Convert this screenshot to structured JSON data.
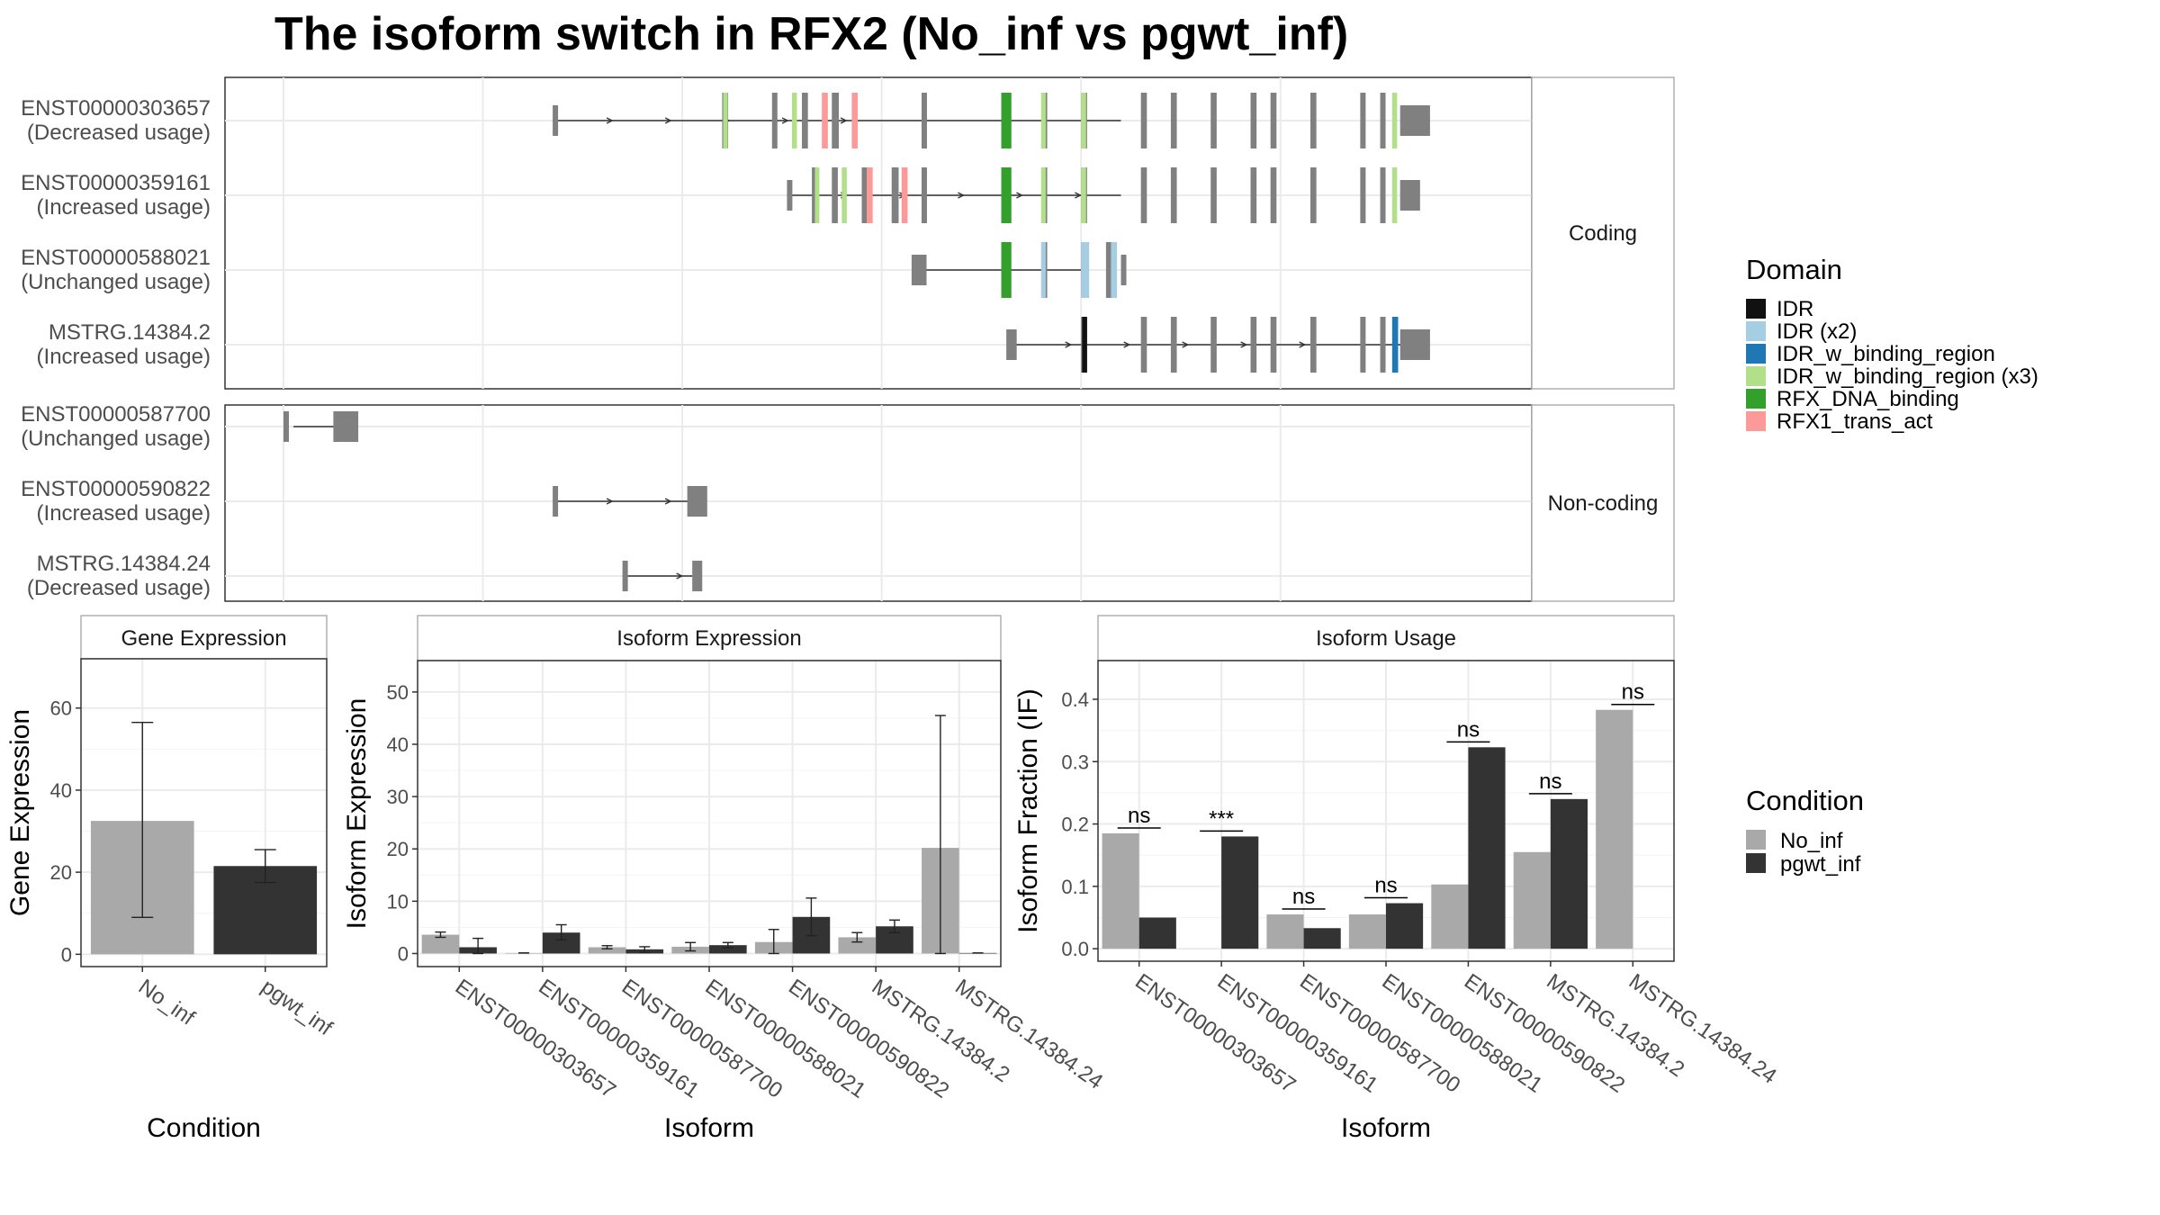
{
  "title": "The isoform switch in RFX2 (No_inf vs pgwt_inf)",
  "colors": {
    "exon": "#808080",
    "bar_no_inf": "#a9a9a9",
    "bar_pgwt_inf": "#333333",
    "IDR": "#111111",
    "IDR (x2)": "#a6cee3",
    "IDR_w_binding_region": "#1f78b4",
    "IDR_w_binding_region (x3)": "#b2df8a",
    "RFX_DNA_binding": "#33a02c",
    "RFX1_trans_act": "#fb9a99"
  },
  "structure": {
    "coding_label": "Coding",
    "noncoding_label": "Non-coding",
    "coding": [
      {
        "name": "ENST00000303657",
        "usage": "(Decreased usage)",
        "line": [
          27,
          84
        ],
        "arrows": true,
        "exons": [
          [
            27,
            27.5,
            "s"
          ],
          [
            44,
            44.6,
            "t"
          ],
          [
            49,
            49.5,
            "t"
          ],
          [
            52,
            52.6,
            "t"
          ],
          [
            55,
            55.7,
            "t"
          ],
          [
            64,
            64.5,
            "t"
          ],
          [
            72,
            73,
            "t"
          ],
          [
            76,
            76.6,
            "t"
          ],
          [
            80,
            80.6,
            "t"
          ],
          [
            86,
            86.6,
            "t"
          ],
          [
            89,
            89.6,
            "t"
          ],
          [
            93,
            93.6,
            "t"
          ],
          [
            97,
            97.6,
            "t"
          ],
          [
            99,
            99.6,
            "t"
          ],
          [
            103,
            103.6,
            "t"
          ],
          [
            108,
            108.5,
            "t"
          ],
          [
            110,
            110.3,
            "t"
          ],
          [
            112,
            115,
            "u"
          ]
        ],
        "domains": [
          [
            44.1,
            44.5,
            "IDR_w_binding_region (x3)"
          ],
          [
            51,
            51.5,
            "IDR_w_binding_region (x3)"
          ],
          [
            54,
            54.6,
            "RFX1_trans_act"
          ],
          [
            57,
            57.6,
            "RFX1_trans_act"
          ],
          [
            72,
            73,
            "RFX_DNA_binding"
          ],
          [
            76,
            76.4,
            "IDR_w_binding_region (x3)"
          ],
          [
            80,
            80.5,
            "IDR_w_binding_region (x3)"
          ],
          [
            111.2,
            111.7,
            "IDR_w_binding_region (x3)"
          ]
        ]
      },
      {
        "name": "ENST00000359161",
        "usage": "(Increased usage)",
        "line": [
          50.5,
          84
        ],
        "arrows": true,
        "exons": [
          [
            50.5,
            51,
            "s"
          ],
          [
            53,
            53.5,
            "t"
          ],
          [
            55,
            55.6,
            "t"
          ],
          [
            58,
            58.6,
            "t"
          ],
          [
            61,
            61.7,
            "t"
          ],
          [
            64,
            64.5,
            "t"
          ],
          [
            72,
            73,
            "t"
          ],
          [
            76,
            76.6,
            "t"
          ],
          [
            80,
            80.6,
            "t"
          ],
          [
            86,
            86.6,
            "t"
          ],
          [
            89,
            89.6,
            "t"
          ],
          [
            93,
            93.6,
            "t"
          ],
          [
            97,
            97.6,
            "t"
          ],
          [
            99,
            99.6,
            "t"
          ],
          [
            103,
            103.6,
            "t"
          ],
          [
            108,
            108.5,
            "t"
          ],
          [
            110,
            110.3,
            "t"
          ],
          [
            112,
            114,
            "u"
          ]
        ],
        "domains": [
          [
            53.3,
            53.5,
            "IDR_w_binding_region (x3)"
          ],
          [
            56,
            56.5,
            "IDR_w_binding_region (x3)"
          ],
          [
            58.5,
            59.1,
            "RFX1_trans_act"
          ],
          [
            62,
            62.6,
            "RFX1_trans_act"
          ],
          [
            72,
            73,
            "RFX_DNA_binding"
          ],
          [
            76,
            76.4,
            "IDR_w_binding_region (x3)"
          ],
          [
            80,
            80.5,
            "IDR_w_binding_region (x3)"
          ],
          [
            111.2,
            111.7,
            "IDR_w_binding_region (x3)"
          ]
        ]
      },
      {
        "name": "ENST00000588021",
        "usage": "(Unchanged usage)",
        "line": [
          64,
          80
        ],
        "arrows": false,
        "exons": [
          [
            63,
            64.5,
            "u"
          ],
          [
            72,
            73,
            "t"
          ],
          [
            76,
            76.6,
            "t"
          ],
          [
            80,
            80.8,
            "t"
          ],
          [
            82.5,
            83.5,
            "t"
          ],
          [
            84,
            84.3,
            "u"
          ]
        ],
        "domains": [
          [
            72,
            73,
            "RFX_DNA_binding"
          ],
          [
            76,
            76.4,
            "IDR (x2)"
          ],
          [
            80,
            80.8,
            "IDR (x2)"
          ],
          [
            83,
            83.6,
            "IDR (x2)"
          ]
        ]
      },
      {
        "name": "MSTRG.14384.2",
        "usage": "(Increased usage)",
        "line": [
          73,
          113
        ],
        "arrows": true,
        "exons": [
          [
            72.5,
            73,
            "s"
          ],
          [
            73,
            73.3,
            "u"
          ],
          [
            80,
            80.6,
            "t"
          ],
          [
            86,
            86.6,
            "t"
          ],
          [
            89,
            89.6,
            "t"
          ],
          [
            93,
            93.6,
            "t"
          ],
          [
            97,
            97.6,
            "t"
          ],
          [
            99,
            99.6,
            "t"
          ],
          [
            103,
            103.6,
            "t"
          ],
          [
            108,
            108.5,
            "t"
          ],
          [
            110,
            110.3,
            "t"
          ],
          [
            112,
            115,
            "u"
          ]
        ],
        "domains": [
          [
            80.1,
            80.6,
            "IDR"
          ],
          [
            111.2,
            111.8,
            "IDR_w_binding_region"
          ]
        ]
      }
    ],
    "noncoding": [
      {
        "name": "ENST00000587700",
        "usage": "(Unchanged usage)",
        "line": [
          1,
          7
        ],
        "arrows": false,
        "exons": [
          [
            0,
            0.5,
            "s"
          ],
          [
            5,
            7.5,
            "u"
          ]
        ],
        "domains": []
      },
      {
        "name": "ENST00000590822",
        "usage": "(Increased usage)",
        "line": [
          27,
          41
        ],
        "arrows": true,
        "exons": [
          [
            27,
            27.5,
            "s"
          ],
          [
            40.5,
            41,
            "s"
          ],
          [
            41,
            42.5,
            "u"
          ]
        ],
        "domains": []
      },
      {
        "name": "MSTRG.14384.24",
        "usage": "(Decreased usage)",
        "line": [
          34,
          41
        ],
        "arrows": true,
        "exons": [
          [
            34,
            34.5,
            "s"
          ],
          [
            41,
            42,
            "u"
          ]
        ],
        "domains": []
      }
    ]
  },
  "legend_domain": {
    "title": "Domain",
    "items": [
      "IDR",
      "IDR (x2)",
      "IDR_w_binding_region",
      "IDR_w_binding_region (x3)",
      "RFX_DNA_binding",
      "RFX1_trans_act"
    ]
  },
  "legend_condition": {
    "title": "Condition",
    "items": [
      "No_inf",
      "pgwt_inf"
    ]
  },
  "chart_data": [
    {
      "type": "bar",
      "title": "Gene Expression",
      "xlabel": "Condition",
      "ylabel": "Gene Expression",
      "ylim": [
        -3,
        72
      ],
      "yticks": [
        0,
        20,
        40,
        60
      ],
      "categories": [
        "No_inf",
        "pgwt_inf"
      ],
      "values": [
        32.5,
        21.5
      ],
      "error": [
        [
          9,
          56.5
        ],
        [
          17.5,
          25.5
        ]
      ]
    },
    {
      "type": "bar",
      "title": "Isoform Expression",
      "xlabel": "Isoform",
      "ylabel": "Isoform Expression",
      "ylim": [
        -2.5,
        56
      ],
      "yticks": [
        0,
        10,
        20,
        30,
        40,
        50
      ],
      "categories": [
        "ENST00000303657",
        "ENST00000359161",
        "ENST00000587700",
        "ENST00000588021",
        "ENST00000590822",
        "MSTRG.14384.2",
        "MSTRG.14384.24"
      ],
      "series": [
        {
          "name": "No_inf",
          "values": [
            3.6,
            0.1,
            1.2,
            1.3,
            2.2,
            3.1,
            20.2
          ],
          "error": [
            [
              3.1,
              4.1
            ],
            [
              0.1,
              0.1
            ],
            [
              0.9,
              1.5
            ],
            [
              0.5,
              2.1
            ],
            [
              0,
              4.6
            ],
            [
              2.2,
              4.0
            ],
            [
              0,
              45.5
            ]
          ]
        },
        {
          "name": "pgwt_inf",
          "values": [
            1.2,
            4.0,
            0.8,
            1.6,
            7.0,
            5.2,
            0.1
          ],
          "error": [
            [
              0,
              2.9
            ],
            [
              2.6,
              5.5
            ],
            [
              0.2,
              1.3
            ],
            [
              1.1,
              2.1
            ],
            [
              3.4,
              10.6
            ],
            [
              4.0,
              6.4
            ],
            [
              0.1,
              0.1
            ]
          ]
        }
      ]
    },
    {
      "type": "bar",
      "title": "Isoform Usage",
      "xlabel": "Isoform",
      "ylabel": "Isoform Fraction (IF)",
      "ylim": [
        -0.02,
        0.462
      ],
      "yticks": [
        "0.0",
        "0.1",
        "0.2",
        "0.3",
        "0.4"
      ],
      "categories": [
        "ENST00000303657",
        "ENST00000359161",
        "ENST00000587700",
        "ENST00000588021",
        "ENST00000590822",
        "MSTRG.14384.2",
        "MSTRG.14384.24"
      ],
      "series": [
        {
          "name": "No_inf",
          "values": [
            0.185,
            0.0,
            0.055,
            0.055,
            0.103,
            0.155,
            0.383
          ]
        },
        {
          "name": "pgwt_inf",
          "values": [
            0.05,
            0.18,
            0.033,
            0.073,
            0.323,
            0.24,
            0.0
          ]
        }
      ],
      "significance": [
        "ns",
        "***",
        "ns",
        "ns",
        "ns",
        "ns",
        "ns"
      ]
    }
  ]
}
